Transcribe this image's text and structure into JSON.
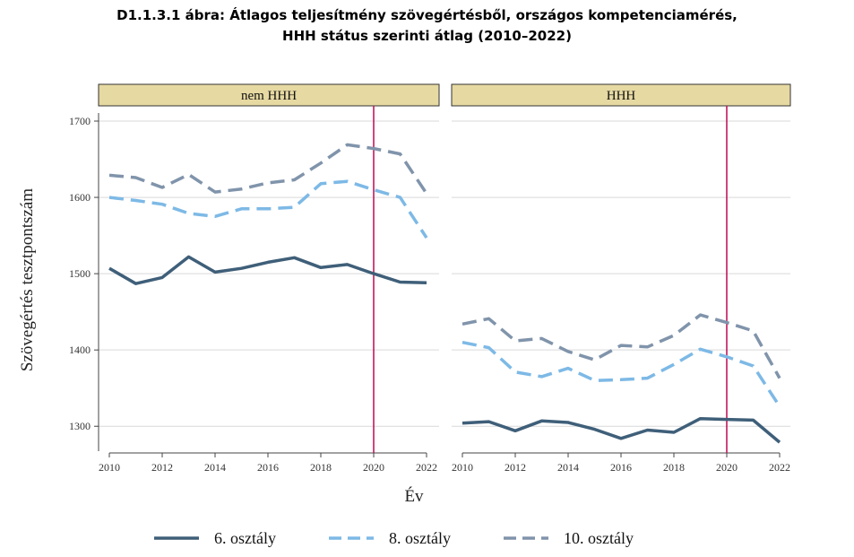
{
  "title_line1": "D1.1.3.1 ábra: Átlagos teljesítmény szövegértésből, országos kompetenciamérés,",
  "title_line2": "HHH státus szerinti átlag (2010–2022)",
  "colors": {
    "panel_header_bg": "#e6d9a2",
    "vline": "#c2185b",
    "grade6": "#3f5f79",
    "grade8": "#7db9e6",
    "grade10": "#8094ab",
    "grid": "#d9d9d9"
  },
  "chart_data": {
    "type": "line",
    "xlabel": "Év",
    "ylabel": "Szövegértés tesztpontszám",
    "ylim": [
      1265,
      1720
    ],
    "xlim": [
      2010,
      2022
    ],
    "y_ticks": [
      1300,
      1400,
      1500,
      1600,
      1700
    ],
    "x_ticks": [
      2010,
      2012,
      2014,
      2016,
      2018,
      2020,
      2022
    ],
    "reference_line_x": 2020,
    "grid": true,
    "legend_position": "bottom",
    "x": [
      2010,
      2011,
      2012,
      2013,
      2014,
      2015,
      2016,
      2017,
      2018,
      2019,
      2020,
      2021,
      2022
    ],
    "legend": [
      {
        "name": "6. osztály",
        "style": "solid",
        "color": "#3f5f79"
      },
      {
        "name": "8. osztály",
        "style": "dashed",
        "color": "#7db9e6"
      },
      {
        "name": "10. osztály",
        "style": "dashed",
        "color": "#8094ab"
      }
    ],
    "panels": [
      {
        "title": "nem HHH",
        "series": [
          {
            "name": "6. osztály",
            "values": [
              1507,
              1487,
              1495,
              1522,
              1502,
              1507,
              1515,
              1521,
              1508,
              1512,
              1500,
              1489,
              1488
            ]
          },
          {
            "name": "8. osztály",
            "values": [
              1600,
              1596,
              1591,
              1579,
              1575,
              1585,
              1585,
              1587,
              1618,
              1621,
              1610,
              1600,
              1547
            ]
          },
          {
            "name": "10. osztály",
            "values": [
              1629,
              1626,
              1613,
              1630,
              1607,
              1611,
              1619,
              1623,
              1645,
              1669,
              1664,
              1657,
              1605
            ]
          }
        ]
      },
      {
        "title": "HHH",
        "series": [
          {
            "name": "6. osztály",
            "values": [
              1304,
              1306,
              1294,
              1307,
              1305,
              1296,
              1284,
              1295,
              1292,
              1310,
              1309,
              1308,
              1279
            ]
          },
          {
            "name": "8. osztály",
            "values": [
              1410,
              1403,
              1371,
              1365,
              1376,
              1360,
              1361,
              1363,
              1381,
              1401,
              1391,
              1379,
              1326
            ]
          },
          {
            "name": "10. osztály",
            "values": [
              1434,
              1441,
              1412,
              1415,
              1398,
              1387,
              1406,
              1404,
              1419,
              1446,
              1436,
              1425,
              1363
            ]
          }
        ]
      }
    ]
  }
}
